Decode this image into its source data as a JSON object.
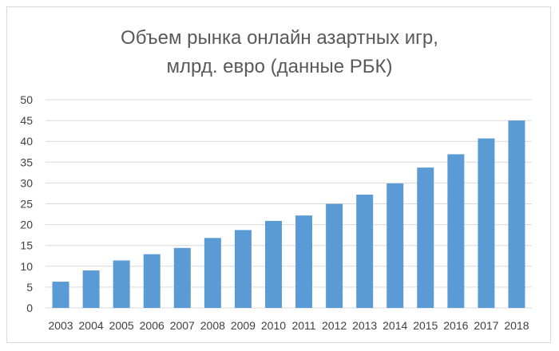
{
  "chart_data": {
    "type": "bar",
    "title_lines": [
      "Объем рынка онлайн азартных игр,",
      "млрд. евро (данные РБК)"
    ],
    "categories": [
      "2003",
      "2004",
      "2005",
      "2006",
      "2007",
      "2008",
      "2009",
      "2010",
      "2011",
      "2012",
      "2013",
      "2014",
      "2015",
      "2016",
      "2017",
      "2018"
    ],
    "values": [
      6.3,
      9.0,
      11.4,
      12.9,
      14.4,
      16.8,
      18.7,
      20.9,
      22.2,
      25.0,
      27.2,
      29.9,
      33.7,
      36.9,
      40.7,
      45.0
    ],
    "yticks": [
      "0",
      "5",
      "10",
      "15",
      "20",
      "25",
      "30",
      "35",
      "40",
      "45",
      "50"
    ],
    "ylim": [
      0,
      50
    ],
    "grid": true,
    "legend": "none",
    "bar_color": "#5b9bd5",
    "grid_color": "#d9d9d9"
  }
}
